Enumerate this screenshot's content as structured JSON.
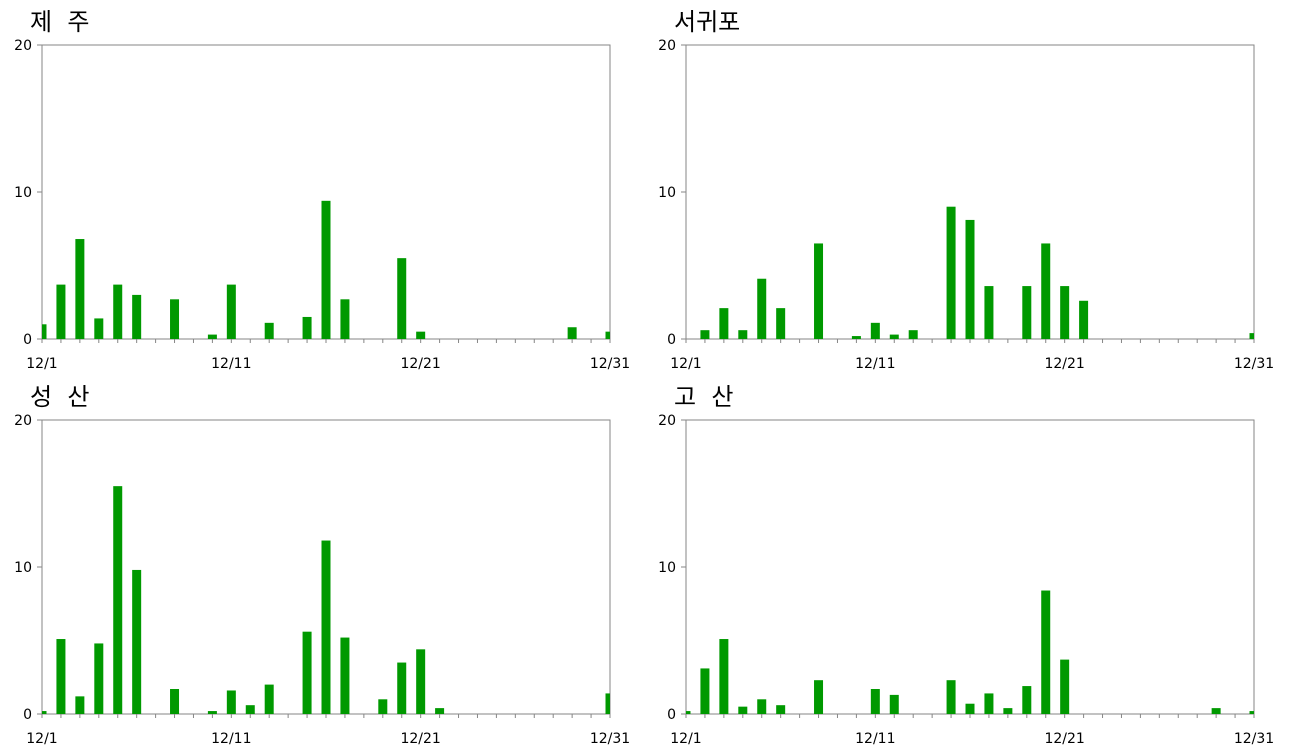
{
  "chart_data": [
    {
      "type": "bar",
      "title": "제  주",
      "x_tick_labels": [
        "12/1",
        "12/11",
        "12/21",
        "12/31"
      ],
      "y_ticks": [
        0,
        10,
        20
      ],
      "ylim": [
        0,
        20
      ],
      "bar_color": "#009900",
      "x": [
        "12/1",
        "12/2",
        "12/3",
        "12/4",
        "12/5",
        "12/6",
        "12/7",
        "12/8",
        "12/9",
        "12/10",
        "12/11",
        "12/12",
        "12/13",
        "12/14",
        "12/15",
        "12/16",
        "12/17",
        "12/18",
        "12/19",
        "12/20",
        "12/21",
        "12/22",
        "12/23",
        "12/24",
        "12/25",
        "12/26",
        "12/27",
        "12/28",
        "12/29",
        "12/30",
        "12/31"
      ],
      "values": [
        1.0,
        3.7,
        6.8,
        1.4,
        3.7,
        3.0,
        0,
        2.7,
        0,
        0.3,
        3.7,
        0,
        1.1,
        0,
        1.5,
        9.4,
        2.7,
        0,
        0,
        5.5,
        0.5,
        0,
        0,
        0,
        0,
        0,
        0,
        0,
        0.8,
        0,
        0.5
      ]
    },
    {
      "type": "bar",
      "title": "서귀포",
      "x_tick_labels": [
        "12/1",
        "12/11",
        "12/21",
        "12/31"
      ],
      "y_ticks": [
        0,
        10,
        20
      ],
      "ylim": [
        0,
        20
      ],
      "bar_color": "#009900",
      "x": [
        "12/1",
        "12/2",
        "12/3",
        "12/4",
        "12/5",
        "12/6",
        "12/7",
        "12/8",
        "12/9",
        "12/10",
        "12/11",
        "12/12",
        "12/13",
        "12/14",
        "12/15",
        "12/16",
        "12/17",
        "12/18",
        "12/19",
        "12/20",
        "12/21",
        "12/22",
        "12/23",
        "12/24",
        "12/25",
        "12/26",
        "12/27",
        "12/28",
        "12/29",
        "12/30",
        "12/31"
      ],
      "values": [
        0,
        0.6,
        2.1,
        0.6,
        4.1,
        2.1,
        0,
        6.5,
        0,
        0.2,
        1.1,
        0.3,
        0.6,
        0,
        9.0,
        8.1,
        3.6,
        0,
        3.6,
        6.5,
        3.6,
        2.6,
        0,
        0,
        0,
        0,
        0,
        0,
        0,
        0,
        0.4
      ]
    },
    {
      "type": "bar",
      "title": "성  산",
      "x_tick_labels": [
        "12/1",
        "12/11",
        "12/21",
        "12/31"
      ],
      "y_ticks": [
        0,
        10,
        20
      ],
      "ylim": [
        0,
        20
      ],
      "bar_color": "#009900",
      "x": [
        "12/1",
        "12/2",
        "12/3",
        "12/4",
        "12/5",
        "12/6",
        "12/7",
        "12/8",
        "12/9",
        "12/10",
        "12/11",
        "12/12",
        "12/13",
        "12/14",
        "12/15",
        "12/16",
        "12/17",
        "12/18",
        "12/19",
        "12/20",
        "12/21",
        "12/22",
        "12/23",
        "12/24",
        "12/25",
        "12/26",
        "12/27",
        "12/28",
        "12/29",
        "12/30",
        "12/31"
      ],
      "values": [
        0.2,
        5.1,
        1.2,
        4.8,
        15.5,
        9.8,
        0,
        1.7,
        0,
        0.2,
        1.6,
        0.6,
        2.0,
        0,
        5.6,
        11.8,
        5.2,
        0,
        1.0,
        3.5,
        4.4,
        0.4,
        0,
        0,
        0,
        0,
        0,
        0,
        0,
        0,
        1.4
      ]
    },
    {
      "type": "bar",
      "title": "고  산",
      "x_tick_labels": [
        "12/1",
        "12/11",
        "12/21",
        "12/31"
      ],
      "y_ticks": [
        0,
        10,
        20
      ],
      "ylim": [
        0,
        20
      ],
      "bar_color": "#009900",
      "x": [
        "12/1",
        "12/2",
        "12/3",
        "12/4",
        "12/5",
        "12/6",
        "12/7",
        "12/8",
        "12/9",
        "12/10",
        "12/11",
        "12/12",
        "12/13",
        "12/14",
        "12/15",
        "12/16",
        "12/17",
        "12/18",
        "12/19",
        "12/20",
        "12/21",
        "12/22",
        "12/23",
        "12/24",
        "12/25",
        "12/26",
        "12/27",
        "12/28",
        "12/29",
        "12/30",
        "12/31"
      ],
      "values": [
        0.2,
        3.1,
        5.1,
        0.5,
        1.0,
        0.6,
        0,
        2.3,
        0,
        0,
        1.7,
        1.3,
        0,
        0,
        2.3,
        0.7,
        1.4,
        0.4,
        1.9,
        8.4,
        3.7,
        0,
        0,
        0,
        0,
        0,
        0,
        0,
        0.4,
        0,
        0.2
      ]
    }
  ]
}
